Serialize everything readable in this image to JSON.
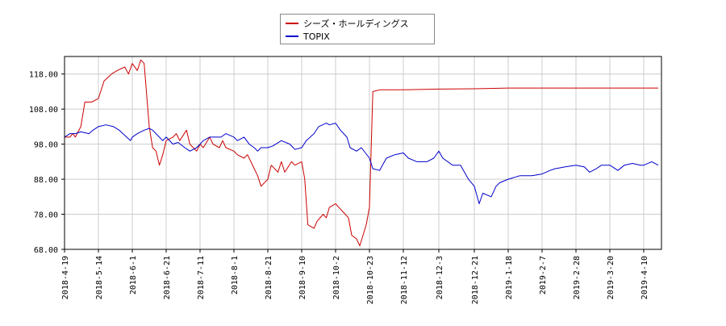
{
  "chart_data": {
    "type": "line",
    "title": "",
    "xlabel": "",
    "ylabel": "",
    "ylim": [
      68,
      123
    ],
    "y_ticks": [
      "68.00",
      "78.00",
      "88.00",
      "98.00",
      "108.00",
      "118.00"
    ],
    "x_ticks": [
      "2018-4-19",
      "2018-5-14",
      "2018-6-1",
      "2018-6-21",
      "2018-7-11",
      "2018-8-1",
      "2018-8-21",
      "2018-9-10",
      "2018-10-2",
      "2018-10-23",
      "2018-11-12",
      "2018-12-3",
      "2018-12-21",
      "2019-1-18",
      "2019-2-7",
      "2019-2-28",
      "2019-3-20",
      "2019-4-10"
    ],
    "grid": true,
    "legend_placement": "top-center",
    "series": [
      {
        "name": "シーズ・ホールディングス",
        "color": "#cc0000",
        "points": [
          [
            "2018-4-19",
            100
          ],
          [
            "2018-4-23",
            100
          ],
          [
            "2018-4-25",
            101
          ],
          [
            "2018-4-27",
            100
          ],
          [
            "2018-5-1",
            103
          ],
          [
            "2018-5-4",
            110
          ],
          [
            "2018-5-9",
            110
          ],
          [
            "2018-5-14",
            111
          ],
          [
            "2018-5-17",
            116
          ],
          [
            "2018-5-21",
            118
          ],
          [
            "2018-5-24",
            119
          ],
          [
            "2018-5-28",
            120
          ],
          [
            "2018-5-30",
            118
          ],
          [
            "2018-6-1",
            121
          ],
          [
            "2018-6-4",
            119
          ],
          [
            "2018-6-6",
            122
          ],
          [
            "2018-6-8",
            121
          ],
          [
            "2018-6-11",
            103
          ],
          [
            "2018-6-13",
            97
          ],
          [
            "2018-6-15",
            96
          ],
          [
            "2018-6-17",
            92
          ],
          [
            "2018-6-19",
            95
          ],
          [
            "2018-6-21",
            99
          ],
          [
            "2018-6-25",
            100
          ],
          [
            "2018-6-27",
            101
          ],
          [
            "2018-6-29",
            99
          ],
          [
            "2018-7-3",
            102
          ],
          [
            "2018-7-5",
            98
          ],
          [
            "2018-7-9",
            96
          ],
          [
            "2018-7-11",
            98
          ],
          [
            "2018-7-13",
            97
          ],
          [
            "2018-7-17",
            100
          ],
          [
            "2018-7-19",
            98
          ],
          [
            "2018-7-23",
            97
          ],
          [
            "2018-7-25",
            99
          ],
          [
            "2018-7-27",
            97
          ],
          [
            "2018-8-1",
            96
          ],
          [
            "2018-8-3",
            95
          ],
          [
            "2018-8-7",
            94
          ],
          [
            "2018-8-9",
            95
          ],
          [
            "2018-8-13",
            91
          ],
          [
            "2018-8-15",
            89
          ],
          [
            "2018-8-17",
            86
          ],
          [
            "2018-8-21",
            88
          ],
          [
            "2018-8-23",
            92
          ],
          [
            "2018-8-27",
            90
          ],
          [
            "2018-8-29",
            93
          ],
          [
            "2018-8-31",
            90
          ],
          [
            "2018-9-4",
            93
          ],
          [
            "2018-9-6",
            92
          ],
          [
            "2018-9-10",
            93
          ],
          [
            "2018-9-12",
            88
          ],
          [
            "2018-9-14",
            75
          ],
          [
            "2018-9-18",
            74
          ],
          [
            "2018-9-20",
            76
          ],
          [
            "2018-9-24",
            78
          ],
          [
            "2018-9-26",
            77
          ],
          [
            "2018-9-28",
            80
          ],
          [
            "2018-10-2",
            81
          ],
          [
            "2018-10-4",
            80
          ],
          [
            "2018-10-8",
            78
          ],
          [
            "2018-10-10",
            77
          ],
          [
            "2018-10-12",
            72
          ],
          [
            "2018-10-15",
            71
          ],
          [
            "2018-10-17",
            69
          ],
          [
            "2018-10-19",
            72
          ],
          [
            "2018-10-21",
            75
          ],
          [
            "2018-10-23",
            80
          ],
          [
            "2018-10-25",
            113
          ],
          [
            "2018-10-29",
            113.5
          ],
          [
            "2018-11-12",
            113.5
          ],
          [
            "2018-12-3",
            113.7
          ],
          [
            "2018-12-21",
            113.8
          ],
          [
            "2019-1-18",
            114
          ],
          [
            "2019-2-7",
            114
          ],
          [
            "2019-2-28",
            114
          ],
          [
            "2019-3-20",
            114
          ],
          [
            "2019-4-10",
            114
          ],
          [
            "2019-4-19",
            114
          ]
        ]
      },
      {
        "name": "TOPIX",
        "color": "#0000cc",
        "points": [
          [
            "2018-4-19",
            100
          ],
          [
            "2018-4-23",
            101
          ],
          [
            "2018-4-27",
            101
          ],
          [
            "2018-5-1",
            101.5
          ],
          [
            "2018-5-7",
            101
          ],
          [
            "2018-5-10",
            102
          ],
          [
            "2018-5-14",
            103
          ],
          [
            "2018-5-18",
            103.5
          ],
          [
            "2018-5-22",
            103
          ],
          [
            "2018-5-25",
            102
          ],
          [
            "2018-5-29",
            100
          ],
          [
            "2018-5-31",
            99
          ],
          [
            "2018-6-1",
            100
          ],
          [
            "2018-6-4",
            101
          ],
          [
            "2018-6-8",
            102
          ],
          [
            "2018-6-11",
            102.5
          ],
          [
            "2018-6-13",
            102
          ],
          [
            "2018-6-15",
            101
          ],
          [
            "2018-6-19",
            99
          ],
          [
            "2018-6-21",
            100
          ],
          [
            "2018-6-25",
            98
          ],
          [
            "2018-6-28",
            98.5
          ],
          [
            "2018-7-2",
            97
          ],
          [
            "2018-7-5",
            96
          ],
          [
            "2018-7-9",
            97
          ],
          [
            "2018-7-11",
            98
          ],
          [
            "2018-7-13",
            99
          ],
          [
            "2018-7-17",
            100
          ],
          [
            "2018-7-20",
            100
          ],
          [
            "2018-7-24",
            100
          ],
          [
            "2018-7-27",
            101
          ],
          [
            "2018-8-1",
            100
          ],
          [
            "2018-8-3",
            99
          ],
          [
            "2018-8-7",
            100
          ],
          [
            "2018-8-10",
            98
          ],
          [
            "2018-8-13",
            97
          ],
          [
            "2018-8-15",
            96
          ],
          [
            "2018-8-17",
            97
          ],
          [
            "2018-8-21",
            97
          ],
          [
            "2018-8-24",
            97.5
          ],
          [
            "2018-8-29",
            99
          ],
          [
            "2018-9-3",
            98
          ],
          [
            "2018-9-6",
            96.5
          ],
          [
            "2018-9-10",
            97
          ],
          [
            "2018-9-13",
            99
          ],
          [
            "2018-9-18",
            101
          ],
          [
            "2018-9-21",
            103
          ],
          [
            "2018-9-26",
            104
          ],
          [
            "2018-9-28",
            103.5
          ],
          [
            "2018-10-2",
            104
          ],
          [
            "2018-10-5",
            102
          ],
          [
            "2018-10-9",
            100
          ],
          [
            "2018-10-11",
            97
          ],
          [
            "2018-10-15",
            96
          ],
          [
            "2018-10-18",
            97
          ],
          [
            "2018-10-23",
            94
          ],
          [
            "2018-10-25",
            91
          ],
          [
            "2018-10-29",
            90.5
          ],
          [
            "2018-11-2",
            94
          ],
          [
            "2018-11-7",
            95
          ],
          [
            "2018-11-12",
            95.5
          ],
          [
            "2018-11-15",
            94
          ],
          [
            "2018-11-20",
            93
          ],
          [
            "2018-11-26",
            93
          ],
          [
            "2018-11-30",
            94
          ],
          [
            "2018-12-3",
            96
          ],
          [
            "2018-12-5",
            94
          ],
          [
            "2018-12-10",
            92
          ],
          [
            "2018-12-14",
            92
          ],
          [
            "2018-12-18",
            88
          ],
          [
            "2018-12-21",
            86
          ],
          [
            "2018-12-25",
            81
          ],
          [
            "2018-12-28",
            84
          ],
          [
            "2019-1-4",
            83
          ],
          [
            "2019-1-8",
            86
          ],
          [
            "2019-1-11",
            87
          ],
          [
            "2019-1-18",
            88
          ],
          [
            "2019-1-25",
            89
          ],
          [
            "2019-2-1",
            89
          ],
          [
            "2019-2-7",
            89.5
          ],
          [
            "2019-2-12",
            90.5
          ],
          [
            "2019-2-15",
            91
          ],
          [
            "2019-2-21",
            91.5
          ],
          [
            "2019-2-28",
            92
          ],
          [
            "2019-3-5",
            91.5
          ],
          [
            "2019-3-8",
            90
          ],
          [
            "2019-3-12",
            91
          ],
          [
            "2019-3-15",
            92
          ],
          [
            "2019-3-20",
            92
          ],
          [
            "2019-3-25",
            90.5
          ],
          [
            "2019-3-29",
            92
          ],
          [
            "2019-4-3",
            92.5
          ],
          [
            "2019-4-8",
            92
          ],
          [
            "2019-4-10",
            92
          ],
          [
            "2019-4-15",
            93
          ],
          [
            "2019-4-19",
            92
          ]
        ]
      }
    ]
  }
}
